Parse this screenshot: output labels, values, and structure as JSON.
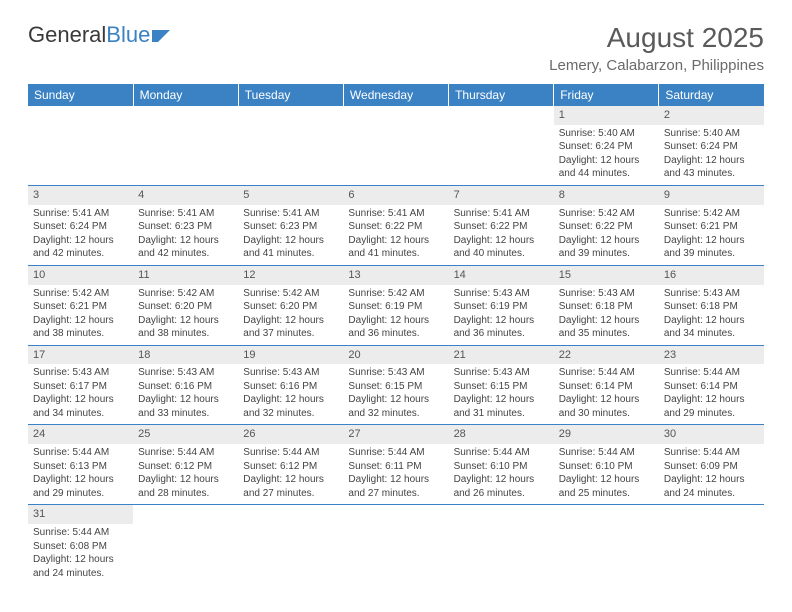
{
  "logo": {
    "part1": "General",
    "part2": "Blue"
  },
  "title": "August 2025",
  "location": "Lemery, Calabarzon, Philippines",
  "colors": {
    "headerBg": "#3b82c4",
    "headerText": "#ffffff",
    "dayNumBg": "#ececec",
    "borderColor": "#3b82c4",
    "textColor": "#444444"
  },
  "weekdays": [
    "Sunday",
    "Monday",
    "Tuesday",
    "Wednesday",
    "Thursday",
    "Friday",
    "Saturday"
  ],
  "weeks": [
    [
      null,
      null,
      null,
      null,
      null,
      {
        "n": "1",
        "sunrise": "Sunrise: 5:40 AM",
        "sunset": "Sunset: 6:24 PM",
        "daylight1": "Daylight: 12 hours",
        "daylight2": "and 44 minutes."
      },
      {
        "n": "2",
        "sunrise": "Sunrise: 5:40 AM",
        "sunset": "Sunset: 6:24 PM",
        "daylight1": "Daylight: 12 hours",
        "daylight2": "and 43 minutes."
      }
    ],
    [
      {
        "n": "3",
        "sunrise": "Sunrise: 5:41 AM",
        "sunset": "Sunset: 6:24 PM",
        "daylight1": "Daylight: 12 hours",
        "daylight2": "and 42 minutes."
      },
      {
        "n": "4",
        "sunrise": "Sunrise: 5:41 AM",
        "sunset": "Sunset: 6:23 PM",
        "daylight1": "Daylight: 12 hours",
        "daylight2": "and 42 minutes."
      },
      {
        "n": "5",
        "sunrise": "Sunrise: 5:41 AM",
        "sunset": "Sunset: 6:23 PM",
        "daylight1": "Daylight: 12 hours",
        "daylight2": "and 41 minutes."
      },
      {
        "n": "6",
        "sunrise": "Sunrise: 5:41 AM",
        "sunset": "Sunset: 6:22 PM",
        "daylight1": "Daylight: 12 hours",
        "daylight2": "and 41 minutes."
      },
      {
        "n": "7",
        "sunrise": "Sunrise: 5:41 AM",
        "sunset": "Sunset: 6:22 PM",
        "daylight1": "Daylight: 12 hours",
        "daylight2": "and 40 minutes."
      },
      {
        "n": "8",
        "sunrise": "Sunrise: 5:42 AM",
        "sunset": "Sunset: 6:22 PM",
        "daylight1": "Daylight: 12 hours",
        "daylight2": "and 39 minutes."
      },
      {
        "n": "9",
        "sunrise": "Sunrise: 5:42 AM",
        "sunset": "Sunset: 6:21 PM",
        "daylight1": "Daylight: 12 hours",
        "daylight2": "and 39 minutes."
      }
    ],
    [
      {
        "n": "10",
        "sunrise": "Sunrise: 5:42 AM",
        "sunset": "Sunset: 6:21 PM",
        "daylight1": "Daylight: 12 hours",
        "daylight2": "and 38 minutes."
      },
      {
        "n": "11",
        "sunrise": "Sunrise: 5:42 AM",
        "sunset": "Sunset: 6:20 PM",
        "daylight1": "Daylight: 12 hours",
        "daylight2": "and 38 minutes."
      },
      {
        "n": "12",
        "sunrise": "Sunrise: 5:42 AM",
        "sunset": "Sunset: 6:20 PM",
        "daylight1": "Daylight: 12 hours",
        "daylight2": "and 37 minutes."
      },
      {
        "n": "13",
        "sunrise": "Sunrise: 5:42 AM",
        "sunset": "Sunset: 6:19 PM",
        "daylight1": "Daylight: 12 hours",
        "daylight2": "and 36 minutes."
      },
      {
        "n": "14",
        "sunrise": "Sunrise: 5:43 AM",
        "sunset": "Sunset: 6:19 PM",
        "daylight1": "Daylight: 12 hours",
        "daylight2": "and 36 minutes."
      },
      {
        "n": "15",
        "sunrise": "Sunrise: 5:43 AM",
        "sunset": "Sunset: 6:18 PM",
        "daylight1": "Daylight: 12 hours",
        "daylight2": "and 35 minutes."
      },
      {
        "n": "16",
        "sunrise": "Sunrise: 5:43 AM",
        "sunset": "Sunset: 6:18 PM",
        "daylight1": "Daylight: 12 hours",
        "daylight2": "and 34 minutes."
      }
    ],
    [
      {
        "n": "17",
        "sunrise": "Sunrise: 5:43 AM",
        "sunset": "Sunset: 6:17 PM",
        "daylight1": "Daylight: 12 hours",
        "daylight2": "and 34 minutes."
      },
      {
        "n": "18",
        "sunrise": "Sunrise: 5:43 AM",
        "sunset": "Sunset: 6:16 PM",
        "daylight1": "Daylight: 12 hours",
        "daylight2": "and 33 minutes."
      },
      {
        "n": "19",
        "sunrise": "Sunrise: 5:43 AM",
        "sunset": "Sunset: 6:16 PM",
        "daylight1": "Daylight: 12 hours",
        "daylight2": "and 32 minutes."
      },
      {
        "n": "20",
        "sunrise": "Sunrise: 5:43 AM",
        "sunset": "Sunset: 6:15 PM",
        "daylight1": "Daylight: 12 hours",
        "daylight2": "and 32 minutes."
      },
      {
        "n": "21",
        "sunrise": "Sunrise: 5:43 AM",
        "sunset": "Sunset: 6:15 PM",
        "daylight1": "Daylight: 12 hours",
        "daylight2": "and 31 minutes."
      },
      {
        "n": "22",
        "sunrise": "Sunrise: 5:44 AM",
        "sunset": "Sunset: 6:14 PM",
        "daylight1": "Daylight: 12 hours",
        "daylight2": "and 30 minutes."
      },
      {
        "n": "23",
        "sunrise": "Sunrise: 5:44 AM",
        "sunset": "Sunset: 6:14 PM",
        "daylight1": "Daylight: 12 hours",
        "daylight2": "and 29 minutes."
      }
    ],
    [
      {
        "n": "24",
        "sunrise": "Sunrise: 5:44 AM",
        "sunset": "Sunset: 6:13 PM",
        "daylight1": "Daylight: 12 hours",
        "daylight2": "and 29 minutes."
      },
      {
        "n": "25",
        "sunrise": "Sunrise: 5:44 AM",
        "sunset": "Sunset: 6:12 PM",
        "daylight1": "Daylight: 12 hours",
        "daylight2": "and 28 minutes."
      },
      {
        "n": "26",
        "sunrise": "Sunrise: 5:44 AM",
        "sunset": "Sunset: 6:12 PM",
        "daylight1": "Daylight: 12 hours",
        "daylight2": "and 27 minutes."
      },
      {
        "n": "27",
        "sunrise": "Sunrise: 5:44 AM",
        "sunset": "Sunset: 6:11 PM",
        "daylight1": "Daylight: 12 hours",
        "daylight2": "and 27 minutes."
      },
      {
        "n": "28",
        "sunrise": "Sunrise: 5:44 AM",
        "sunset": "Sunset: 6:10 PM",
        "daylight1": "Daylight: 12 hours",
        "daylight2": "and 26 minutes."
      },
      {
        "n": "29",
        "sunrise": "Sunrise: 5:44 AM",
        "sunset": "Sunset: 6:10 PM",
        "daylight1": "Daylight: 12 hours",
        "daylight2": "and 25 minutes."
      },
      {
        "n": "30",
        "sunrise": "Sunrise: 5:44 AM",
        "sunset": "Sunset: 6:09 PM",
        "daylight1": "Daylight: 12 hours",
        "daylight2": "and 24 minutes."
      }
    ],
    [
      {
        "n": "31",
        "sunrise": "Sunrise: 5:44 AM",
        "sunset": "Sunset: 6:08 PM",
        "daylight1": "Daylight: 12 hours",
        "daylight2": "and 24 minutes."
      },
      null,
      null,
      null,
      null,
      null,
      null
    ]
  ]
}
